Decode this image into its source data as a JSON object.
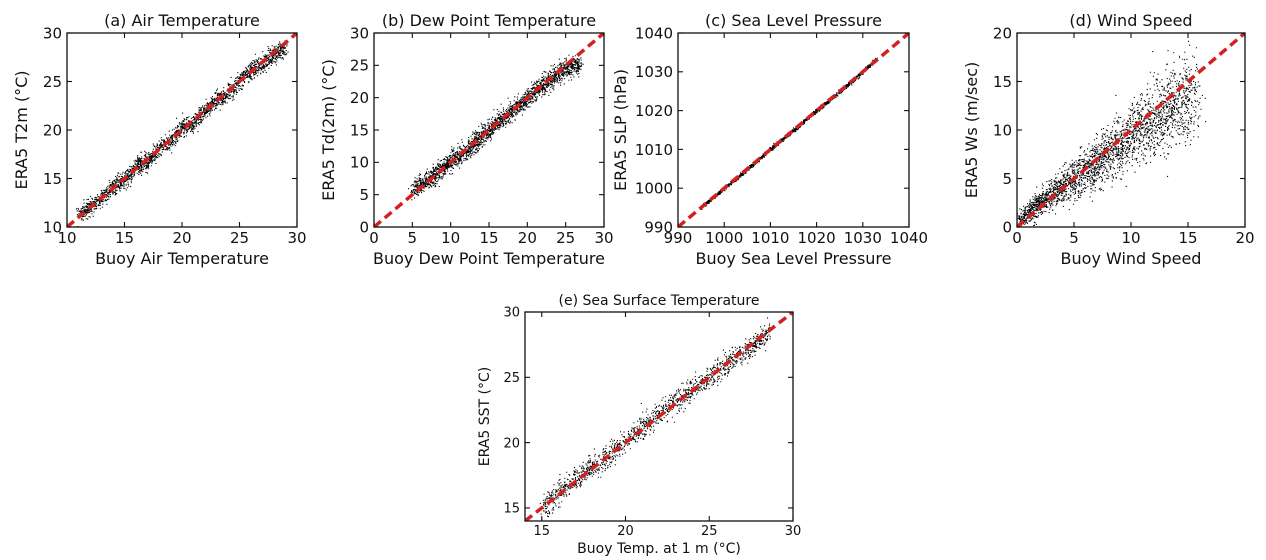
{
  "figure": {
    "chart_data": [
      {
        "type": "scatter",
        "title": "(a) Air Temperature",
        "xlabel": "Buoy Air Temperature",
        "ylabel": "ERA5 T2m (°C)",
        "xlim": [
          10,
          30
        ],
        "ylim": [
          10,
          30
        ],
        "xticks": [
          10,
          15,
          20,
          25,
          30
        ],
        "yticks": [
          10,
          15,
          20,
          25,
          30
        ],
        "series": [
          {
            "points": [
              [
                11.0,
                11.2
              ],
              [
                12.5,
                12.6
              ],
              [
                14.0,
                14.2
              ],
              [
                15.2,
                15.0
              ],
              [
                16.1,
                16.4
              ],
              [
                17.0,
                16.8
              ],
              [
                18.0,
                18.2
              ],
              [
                19.1,
                19.0
              ],
              [
                20.0,
                20.3
              ],
              [
                21.0,
                20.8
              ],
              [
                22.0,
                22.1
              ],
              [
                23.0,
                23.2
              ],
              [
                24.0,
                23.8
              ],
              [
                25.0,
                25.1
              ],
              [
                26.0,
                26.2
              ],
              [
                27.0,
                26.8
              ],
              [
                28.0,
                28.0
              ],
              [
                29.0,
                28.6
              ]
            ]
          }
        ],
        "reference_line": "1:1",
        "grid": false
      },
      {
        "type": "scatter",
        "title": "(b) Dew Point Temperature",
        "xlabel": "Buoy Dew Point Temperature",
        "ylabel": "ERA5 Td(2m) (°C)",
        "xlim": [
          0,
          30
        ],
        "ylim": [
          0,
          30
        ],
        "xticks": [
          0,
          5,
          10,
          15,
          20,
          25,
          30
        ],
        "yticks": [
          0,
          5,
          10,
          15,
          20,
          25,
          30
        ],
        "series": [
          {
            "points": [
              [
                5.0,
                5.8
              ],
              [
                6.0,
                6.5
              ],
              [
                8.0,
                8.2
              ],
              [
                10.0,
                10.3
              ],
              [
                12.0,
                11.8
              ],
              [
                14.0,
                14.1
              ],
              [
                16.0,
                16.2
              ],
              [
                18.0,
                17.8
              ],
              [
                20.0,
                20.1
              ],
              [
                22.0,
                22.0
              ],
              [
                24.0,
                23.8
              ],
              [
                25.5,
                24.8
              ],
              [
                27.0,
                25.5
              ]
            ]
          }
        ],
        "reference_line": "1:1",
        "grid": false
      },
      {
        "type": "scatter",
        "title": "(c) Sea Level Pressure",
        "xlabel": "Buoy Sea Level Pressure",
        "ylabel": "ERA5 SLP (hPa)",
        "xlim": [
          990,
          1040
        ],
        "ylim": [
          990,
          1040
        ],
        "xticks": [
          990,
          1000,
          1010,
          1020,
          1030,
          1040
        ],
        "yticks": [
          990,
          1000,
          1010,
          1020,
          1030,
          1040
        ],
        "series": [
          {
            "points": [
              [
                995,
                995.2
              ],
              [
                1000,
                1000.1
              ],
              [
                1005,
                1005.0
              ],
              [
                1010,
                1010.2
              ],
              [
                1015,
                1015.0
              ],
              [
                1020,
                1020.1
              ],
              [
                1025,
                1025.0
              ],
              [
                1030,
                1030.2
              ],
              [
                1033,
                1033.5
              ]
            ]
          }
        ],
        "reference_line": "1:1",
        "grid": false
      },
      {
        "type": "scatter",
        "title": "(d) Wind Speed",
        "xlabel": "Buoy Wind Speed",
        "ylabel": "ERA5 Ws (m/sec)",
        "xlim": [
          0,
          20
        ],
        "ylim": [
          0,
          20
        ],
        "xticks": [
          0,
          5,
          10,
          15,
          20
        ],
        "yticks": [
          0,
          5,
          10,
          15,
          20
        ],
        "series": [
          {
            "points": [
              [
                0.5,
                1.0
              ],
              [
                2.0,
                2.5
              ],
              [
                4.0,
                4.2
              ],
              [
                6.0,
                5.8
              ],
              [
                8.0,
                7.6
              ],
              [
                10.0,
                9.5
              ],
              [
                12.0,
                11.3
              ],
              [
                14.0,
                12.5
              ],
              [
                15.5,
                13.5
              ]
            ]
          }
        ],
        "reference_line": "1:1",
        "grid": false
      },
      {
        "type": "scatter",
        "title": "(e) Sea Surface Temperature",
        "xlabel": "Buoy Temp. at 1 m (°C)",
        "ylabel": "ERA5 SST (°C)",
        "xlim": [
          14,
          30
        ],
        "ylim": [
          14,
          30
        ],
        "xticks": [
          15,
          20,
          25,
          30
        ],
        "yticks": [
          15,
          20,
          25,
          30
        ],
        "series": [
          {
            "points": [
              [
                15.0,
                15.0
              ],
              [
                16.0,
                16.2
              ],
              [
                17.0,
                17.2
              ],
              [
                18.0,
                18.2
              ],
              [
                19.0,
                19.0
              ],
              [
                20.0,
                20.2
              ],
              [
                21.0,
                21.2
              ],
              [
                22.0,
                22.3
              ],
              [
                23.0,
                23.2
              ],
              [
                24.0,
                24.2
              ],
              [
                25.0,
                25.0
              ],
              [
                26.0,
                26.0
              ],
              [
                27.0,
                27.0
              ],
              [
                28.0,
                27.8
              ],
              [
                28.6,
                28.4
              ]
            ]
          }
        ],
        "reference_line": "1:1",
        "grid": false
      }
    ],
    "colors": {
      "points": "#000000",
      "reference_line": "#d62020",
      "axes": "#111111"
    }
  }
}
